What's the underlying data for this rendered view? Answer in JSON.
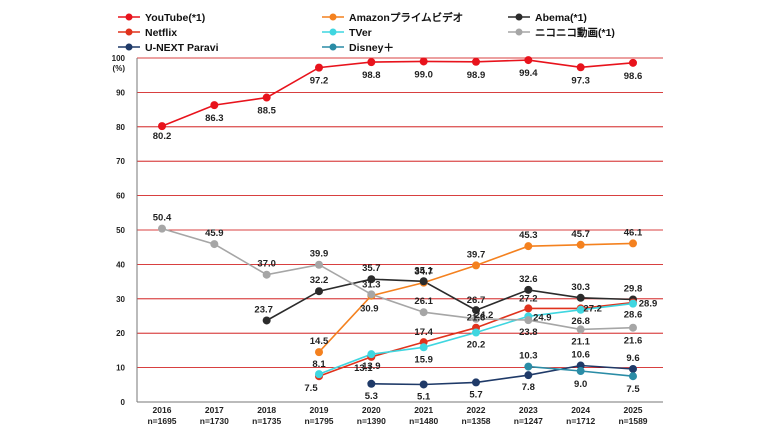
{
  "chart_data": {
    "type": "line",
    "ylabel": "(%)",
    "ylim": [
      0,
      100
    ],
    "yticks": [
      0,
      10,
      20,
      30,
      40,
      50,
      60,
      70,
      80,
      90,
      100
    ],
    "grid": true,
    "legend_position": "top",
    "categories": [
      "2016",
      "2017",
      "2018",
      "2019",
      "2020",
      "2021",
      "2022",
      "2023",
      "2024",
      "2025"
    ],
    "sample_sizes": [
      "n=1695",
      "n=1730",
      "n=1735",
      "n=1795",
      "n=1390",
      "n=1480",
      "n=1358",
      "n=1247",
      "n=1712",
      "n=1589"
    ],
    "series": [
      {
        "name": "YouTube(*1)",
        "color": "#e8131c",
        "values": [
          80.2,
          86.3,
          88.5,
          97.2,
          98.8,
          99.0,
          98.9,
          99.4,
          97.3,
          98.6
        ],
        "labels": [
          "80.2",
          "86.3",
          "88.5",
          "97.2",
          "98.8",
          "99.0",
          "98.9",
          "99.4",
          "97.3",
          "98.6"
        ]
      },
      {
        "name": "Amazonプライムビデオ",
        "color": "#f4811f",
        "values": [
          null,
          null,
          null,
          14.5,
          30.9,
          34.7,
          39.7,
          45.3,
          45.7,
          46.1
        ],
        "labels": [
          null,
          null,
          null,
          "14.5",
          "30.9",
          "34.7",
          "39.7",
          "45.3",
          "45.7",
          "46.1"
        ]
      },
      {
        "name": "Abema(*1)",
        "color": "#2b2b2b",
        "values": [
          null,
          null,
          23.7,
          32.2,
          35.7,
          35.1,
          26.7,
          32.6,
          30.3,
          29.8
        ],
        "labels": [
          null,
          null,
          "23.7",
          "32.2",
          "35.7",
          "35.1",
          "26.7",
          "32.6",
          "30.3",
          "29.8"
        ]
      },
      {
        "name": "Netflix",
        "color": "#e0321c",
        "values": [
          null,
          null,
          null,
          7.5,
          13.1,
          17.4,
          21.6,
          27.2,
          27.2,
          28.9
        ],
        "labels": [
          null,
          null,
          null,
          "7.5",
          "13.1",
          "17.4",
          "21.6",
          "27.2",
          null,
          "28.9"
        ]
      },
      {
        "name": "TVer",
        "color": "#3fd6e0",
        "values": [
          null,
          null,
          null,
          8.1,
          13.9,
          15.9,
          20.2,
          24.9,
          26.8,
          28.6
        ],
        "labels": [
          null,
          null,
          null,
          "8.1",
          "13.9",
          "15.9",
          "20.2",
          "24.9",
          "26.8",
          "28.6"
        ]
      },
      {
        "name": "ニコニコ動画(*1)",
        "color": "#a6a6a6",
        "values": [
          50.4,
          45.9,
          37.0,
          39.9,
          31.3,
          26.1,
          24.2,
          23.8,
          21.1,
          21.6
        ],
        "labels": [
          "50.4",
          "45.9",
          "37.0",
          "39.9",
          "31.3",
          "26.1",
          "24.2",
          "23.8",
          "21.1",
          "21.6"
        ]
      },
      {
        "name": "U-NEXT Paravi",
        "color": "#1f3a68",
        "values": [
          null,
          null,
          null,
          null,
          5.3,
          5.1,
          5.7,
          7.8,
          10.6,
          9.6
        ],
        "labels": [
          null,
          null,
          null,
          null,
          "5.3",
          "5.1",
          "5.7",
          "7.8",
          "10.6",
          "9.6"
        ]
      },
      {
        "name": "Disney＋",
        "color": "#2a8ca6",
        "values": [
          null,
          null,
          null,
          null,
          null,
          null,
          null,
          10.3,
          9.0,
          7.5
        ],
        "labels": [
          null,
          null,
          null,
          null,
          null,
          null,
          null,
          "10.3",
          "9.0",
          "7.5"
        ]
      }
    ]
  }
}
